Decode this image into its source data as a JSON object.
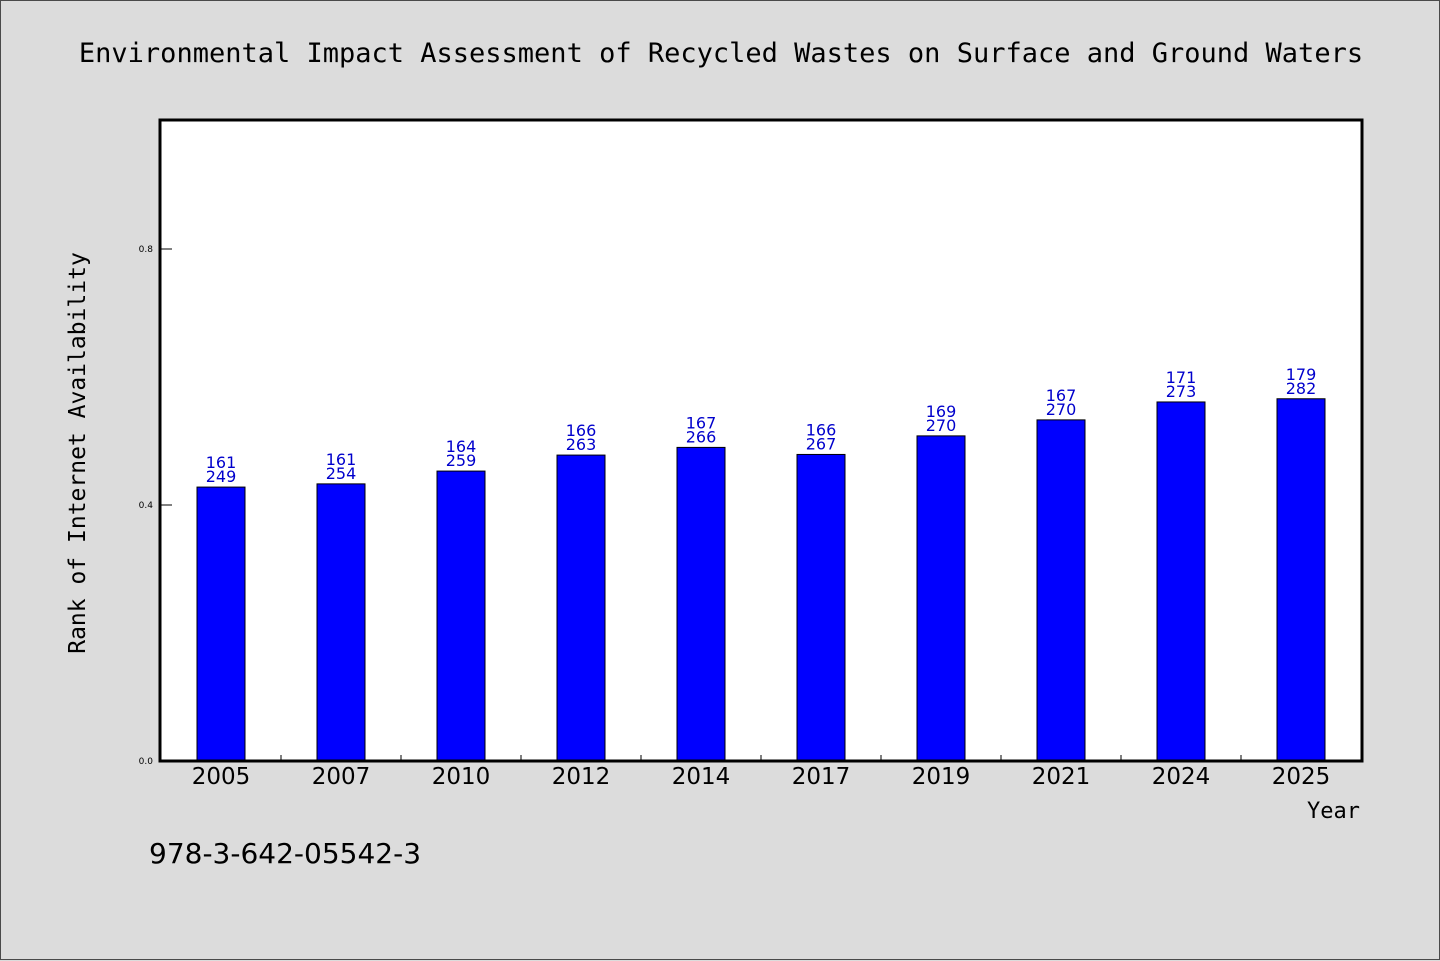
{
  "chart_data": {
    "type": "bar",
    "title": "Environmental Impact Assessment of Recycled Wastes on Surface and Ground Waters",
    "xlabel": "Year",
    "ylabel": "Rank of Internet Availability",
    "ylim": [
      0,
      1.0
    ],
    "yticks": [
      0.0,
      0.4,
      0.8
    ],
    "ytick_labels": [
      "0.0",
      "0.4",
      "0.8"
    ],
    "grid": false,
    "bar_color": "#0000ff",
    "label_color": "#0000cc",
    "categories": [
      "2005",
      "2007",
      "2010",
      "2012",
      "2014",
      "2017",
      "2019",
      "2021",
      "2024",
      "2025"
    ],
    "values": [
      0.428,
      0.433,
      0.453,
      0.478,
      0.49,
      0.479,
      0.508,
      0.533,
      0.561,
      0.566
    ],
    "labels_top": [
      "161",
      "161",
      "164",
      "166",
      "167",
      "166",
      "169",
      "167",
      "171",
      "179"
    ],
    "labels_bottom": [
      "249",
      "254",
      "259",
      "263",
      "266",
      "267",
      "270",
      "270",
      "273",
      "282"
    ]
  },
  "footer": {
    "isbn": "978-3-642-05542-3"
  }
}
